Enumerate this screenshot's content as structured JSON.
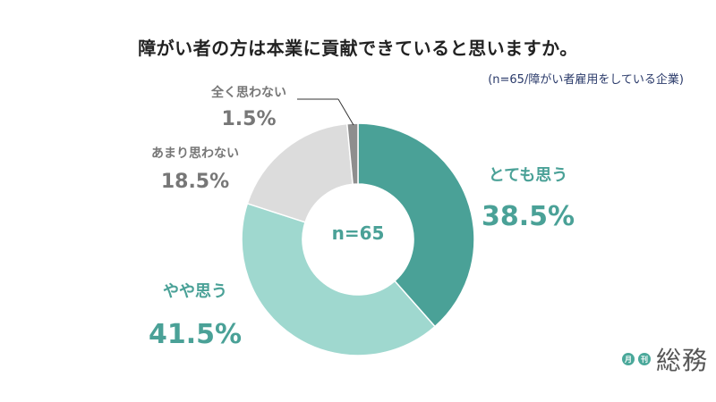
{
  "chart_data": {
    "type": "pie",
    "donut": true,
    "title": "障がい者の方は本業に貢献できていると思いますか。",
    "subtitle": "(n=65/障がい者雇用をしている企業)",
    "center_label": "n=65",
    "slices": [
      {
        "label": "とても思う",
        "value": 38.5,
        "value_label": "38.5%",
        "color": "#4aa197",
        "label_color": "#4aa197"
      },
      {
        "label": "やや思う",
        "value": 41.5,
        "value_label": "41.5%",
        "color": "#9fd8cf",
        "label_color": "#4aa197"
      },
      {
        "label": "あまり思わない",
        "value": 18.5,
        "value_label": "18.5%",
        "color": "#dcdcdc",
        "label_color": "#777777"
      },
      {
        "label": "全く思わない",
        "value": 1.5,
        "value_label": "1.5%",
        "color": "#8e8e8e",
        "label_color": "#777777"
      }
    ]
  },
  "logo": {
    "badge1": "月",
    "badge2": "刊",
    "text": "総務"
  }
}
